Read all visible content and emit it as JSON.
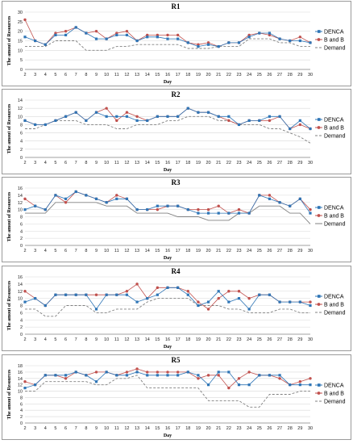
{
  "colors": {
    "denca": "#2e75b6",
    "bandb": "#c0504d",
    "demand": "#808080"
  },
  "legend": [
    "DENCA",
    "B and B",
    "Demand"
  ],
  "chart_data": [
    {
      "type": "line",
      "title": "R1",
      "xlabel": "Day",
      "ylabel": "The amout of Resources",
      "ylim": [
        0,
        30
      ],
      "yticks": [
        0,
        5,
        10,
        15,
        20,
        25,
        30
      ],
      "x": [
        2,
        3,
        4,
        5,
        6,
        7,
        8,
        9,
        10,
        11,
        12,
        13,
        14,
        15,
        16,
        17,
        18,
        19,
        20,
        21,
        22,
        23,
        24,
        25,
        26,
        27,
        28,
        29,
        30
      ],
      "series": [
        {
          "name": "DENCA",
          "style": "solid",
          "marker": "square",
          "values": [
            17,
            15,
            13,
            18,
            18,
            22,
            19,
            16,
            16,
            18,
            18,
            15,
            17,
            17,
            16,
            16,
            14,
            12,
            13,
            12,
            14,
            14,
            17,
            19,
            19,
            16,
            15,
            15,
            14
          ]
        },
        {
          "name": "B and B",
          "style": "solid",
          "marker": "circle",
          "values": [
            26,
            15,
            13,
            19,
            20,
            22,
            19,
            20,
            16,
            19,
            20,
            15,
            18,
            18,
            18,
            18,
            14,
            13,
            14,
            12,
            14,
            14,
            18,
            19,
            18,
            16,
            15,
            17,
            14
          ]
        },
        {
          "name": "Demand",
          "style": "dashed",
          "marker": "none",
          "values": [
            12,
            12,
            12,
            15,
            15,
            15,
            10,
            10,
            10,
            12,
            12,
            13,
            13,
            13,
            13,
            13,
            11,
            11,
            11,
            12,
            12,
            12,
            16,
            16,
            16,
            14,
            14,
            12,
            12
          ]
        }
      ]
    },
    {
      "type": "line",
      "title": "R2",
      "xlabel": "Day",
      "ylabel": "The amout of Resources",
      "ylim": [
        0,
        14
      ],
      "yticks": [
        0,
        2,
        4,
        6,
        8,
        10,
        12,
        14
      ],
      "x": [
        2,
        3,
        4,
        5,
        6,
        7,
        8,
        9,
        10,
        11,
        12,
        13,
        14,
        15,
        16,
        17,
        18,
        19,
        20,
        21,
        22,
        23,
        24,
        25,
        26,
        27,
        28,
        29,
        30
      ],
      "series": [
        {
          "name": "DENCA",
          "style": "solid",
          "marker": "square",
          "values": [
            9,
            8,
            8,
            9,
            10,
            11,
            9,
            11,
            10,
            10,
            10,
            9,
            9,
            10,
            10,
            10,
            12,
            11,
            11,
            10,
            10,
            8,
            9,
            9,
            10,
            10,
            7,
            9,
            7
          ]
        },
        {
          "name": "B and B",
          "style": "solid",
          "marker": "circle",
          "values": [
            9,
            8,
            8,
            9,
            10,
            11,
            9,
            11,
            12,
            9,
            11,
            10,
            9,
            10,
            10,
            10,
            12,
            11,
            11,
            10,
            9,
            8,
            9,
            9,
            9,
            10,
            7,
            8,
            7
          ]
        },
        {
          "name": "Demand",
          "style": "dashed",
          "marker": "none",
          "values": [
            7,
            7,
            8,
            9,
            9,
            9,
            8,
            8,
            8,
            7,
            7,
            8,
            8,
            8,
            9,
            9,
            10,
            10,
            10,
            9,
            9,
            8,
            8,
            8,
            7,
            7,
            6,
            5,
            3.5
          ]
        }
      ]
    },
    {
      "type": "line",
      "title": "R3",
      "xlabel": "Day",
      "ylabel": "The amout of Resources",
      "ylim": [
        0,
        16
      ],
      "yticks": [
        0,
        2,
        4,
        6,
        8,
        10,
        12,
        14,
        16
      ],
      "x": [
        2,
        3,
        4,
        5,
        6,
        7,
        8,
        9,
        10,
        11,
        12,
        13,
        14,
        15,
        16,
        17,
        18,
        19,
        20,
        21,
        22,
        23,
        24,
        25,
        26,
        27,
        28,
        29,
        30
      ],
      "series": [
        {
          "name": "DENCA",
          "style": "solid",
          "marker": "square",
          "values": [
            10,
            11,
            10,
            14,
            13,
            15,
            14,
            13,
            12,
            13,
            13,
            10,
            10,
            11,
            11,
            11,
            10,
            9,
            9,
            9,
            9,
            9,
            9,
            14,
            13,
            12,
            11,
            13,
            9
          ]
        },
        {
          "name": "B and B",
          "style": "solid",
          "marker": "circle",
          "values": [
            13,
            11,
            10,
            14,
            12,
            15,
            14,
            13,
            12,
            14,
            13,
            10,
            10,
            10,
            11,
            11,
            10,
            10,
            10,
            11,
            9,
            10,
            9,
            14,
            14,
            12,
            11,
            13,
            10
          ]
        },
        {
          "name": "Demand",
          "style": "solid",
          "marker": "none",
          "values": [
            9,
            9,
            9,
            12,
            12,
            12,
            12,
            12,
            11,
            11,
            11,
            9,
            9,
            9,
            9,
            8,
            8,
            8,
            7,
            7,
            7,
            9,
            9,
            11,
            11,
            11,
            9,
            9,
            6
          ]
        }
      ]
    },
    {
      "type": "line",
      "title": "R4",
      "xlabel": "Day",
      "ylabel": "The amout of Resources",
      "ylim": [
        0,
        16
      ],
      "yticks": [
        0,
        2,
        4,
        6,
        8,
        10,
        12,
        14,
        16
      ],
      "x": [
        2,
        3,
        4,
        5,
        6,
        7,
        8,
        9,
        10,
        11,
        12,
        13,
        14,
        15,
        16,
        17,
        18,
        19,
        20,
        21,
        22,
        23,
        24,
        25,
        26,
        27,
        28,
        29,
        30
      ],
      "series": [
        {
          "name": "DENCA",
          "style": "solid",
          "marker": "square",
          "values": [
            9,
            10,
            8,
            11,
            11,
            11,
            11,
            7,
            11,
            11,
            11,
            9,
            10,
            11,
            13,
            13,
            11,
            8,
            9,
            12,
            9,
            10,
            7,
            11,
            11,
            9,
            9,
            9,
            8
          ]
        },
        {
          "name": "B and B",
          "style": "solid",
          "marker": "circle",
          "values": [
            12,
            10,
            8,
            11,
            11,
            11,
            11,
            11,
            11,
            11,
            12,
            14,
            10,
            13,
            13,
            13,
            12,
            9,
            7,
            10,
            12,
            12,
            10,
            11,
            11,
            9,
            9,
            9,
            9
          ]
        },
        {
          "name": "Demand",
          "style": "dashed",
          "marker": "none",
          "values": [
            7,
            7,
            5,
            5,
            8,
            8,
            8,
            6,
            6,
            7,
            7,
            7,
            9,
            10,
            10,
            10,
            10,
            8,
            8,
            8,
            7,
            7,
            6,
            6,
            6,
            7,
            7,
            6,
            6
          ]
        }
      ]
    },
    {
      "type": "line",
      "title": "R5",
      "xlabel": "Day",
      "ylabel": "The amout of Resources",
      "ylim": [
        0,
        18
      ],
      "yticks": [
        0,
        2,
        4,
        6,
        8,
        10,
        12,
        14,
        16,
        18
      ],
      "x": [
        2,
        3,
        4,
        5,
        6,
        7,
        8,
        9,
        10,
        11,
        12,
        13,
        14,
        15,
        16,
        17,
        18,
        19,
        20,
        21,
        22,
        23,
        24,
        25,
        26,
        27,
        28,
        29,
        30
      ],
      "series": [
        {
          "name": "DENCA",
          "style": "solid",
          "marker": "square",
          "values": [
            11,
            12,
            15,
            15,
            15,
            16,
            15,
            13,
            16,
            15,
            15,
            16,
            15,
            15,
            15,
            15,
            16,
            15,
            12,
            16,
            16,
            12,
            12,
            15,
            15,
            15,
            12,
            12,
            12
          ]
        },
        {
          "name": "B and B",
          "style": "solid",
          "marker": "circle",
          "values": [
            13,
            12,
            15,
            15,
            14,
            16,
            15,
            16,
            16,
            15,
            16,
            17,
            16,
            16,
            16,
            16,
            16,
            14,
            15,
            15,
            11,
            14,
            16,
            15,
            15,
            14,
            12,
            13,
            14
          ]
        },
        {
          "name": "Demand",
          "style": "dashed",
          "marker": "none",
          "values": [
            10,
            10,
            13,
            13,
            13,
            13,
            13,
            12,
            12,
            14,
            14,
            15,
            11,
            11,
            11,
            11,
            11,
            11,
            7,
            7,
            7,
            7,
            5,
            5,
            9,
            9,
            9,
            10,
            10
          ]
        }
      ]
    }
  ]
}
